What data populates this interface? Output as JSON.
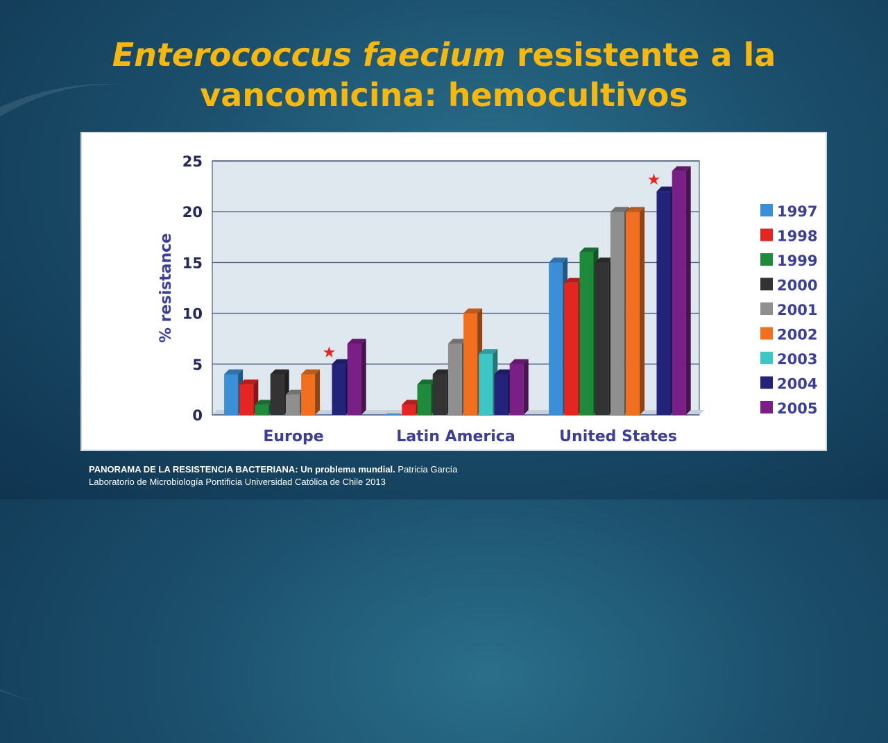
{
  "slide": {
    "title_italic": "Enterococcus faecium",
    "title_rest_line1": " resistente a la",
    "title_line2": "vancomicina: hemocultivos",
    "footer_bold": "PANORAMA DE LA RESISTENCIA BACTERIANA: Un problema mundial.",
    "footer_author": " Patricia García",
    "footer_line2": "Laboratorio de Microbiología Pontificia Universidad Católica de Chile 2013"
  },
  "chart_data": {
    "type": "bar",
    "categories": [
      "Europe",
      "Latin America",
      "United States"
    ],
    "ylabel": "% resistance",
    "ylim": [
      0,
      25
    ],
    "yticks": [
      0,
      5,
      10,
      15,
      20,
      25
    ],
    "grid": true,
    "legend_position": "right",
    "series": [
      {
        "name": "1997",
        "color": "#3b8fd6",
        "values": [
          4,
          0,
          15
        ]
      },
      {
        "name": "1998",
        "color": "#e52521",
        "values": [
          3,
          1,
          13
        ]
      },
      {
        "name": "1999",
        "color": "#1e8a3c",
        "values": [
          1,
          3,
          16
        ]
      },
      {
        "name": "2000",
        "color": "#333333",
        "values": [
          4,
          4,
          15
        ]
      },
      {
        "name": "2001",
        "color": "#8f8f8f",
        "values": [
          2,
          7,
          20
        ]
      },
      {
        "name": "2002",
        "color": "#f07020",
        "values": [
          4,
          10,
          20
        ]
      },
      {
        "name": "2003",
        "color": "#3cc6c6",
        "values": [
          null,
          6,
          null
        ]
      },
      {
        "name": "2004",
        "color": "#23237a",
        "values": [
          5,
          4,
          22
        ]
      },
      {
        "name": "2005",
        "color": "#7a1f85",
        "values": [
          7,
          5,
          24
        ]
      }
    ],
    "annotations": [
      {
        "symbol": "★",
        "category": "Europe",
        "series": "2004",
        "color": "#e52521"
      },
      {
        "symbol": "★",
        "category": "United States",
        "series": "2004",
        "color": "#e52521"
      }
    ]
  }
}
